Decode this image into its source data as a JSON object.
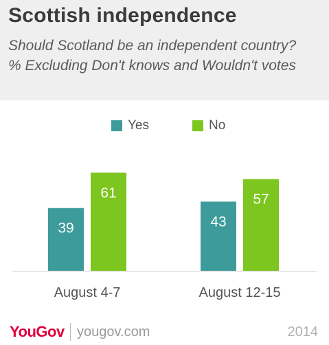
{
  "header": {
    "title": "Scottish independence",
    "subtitle": "Should Scotland be an independent country? % Excluding Don't knows and Wouldn't votes"
  },
  "footer": {
    "logo": "YouGov",
    "site": "yougov.com",
    "year": "2014"
  },
  "colors": {
    "yes": "#3e9b9b",
    "no": "#7dc51f",
    "header_bg": "#efefef",
    "brand": "#e0003d"
  },
  "chart_data": {
    "type": "bar",
    "categories": [
      "August 4-7",
      "August 12-15"
    ],
    "series": [
      {
        "name": "Yes",
        "values": [
          39,
          43
        ]
      },
      {
        "name": "No",
        "values": [
          61,
          57
        ]
      }
    ],
    "ylim": [
      0,
      100
    ],
    "legend_position": "top-center",
    "grid": false
  }
}
